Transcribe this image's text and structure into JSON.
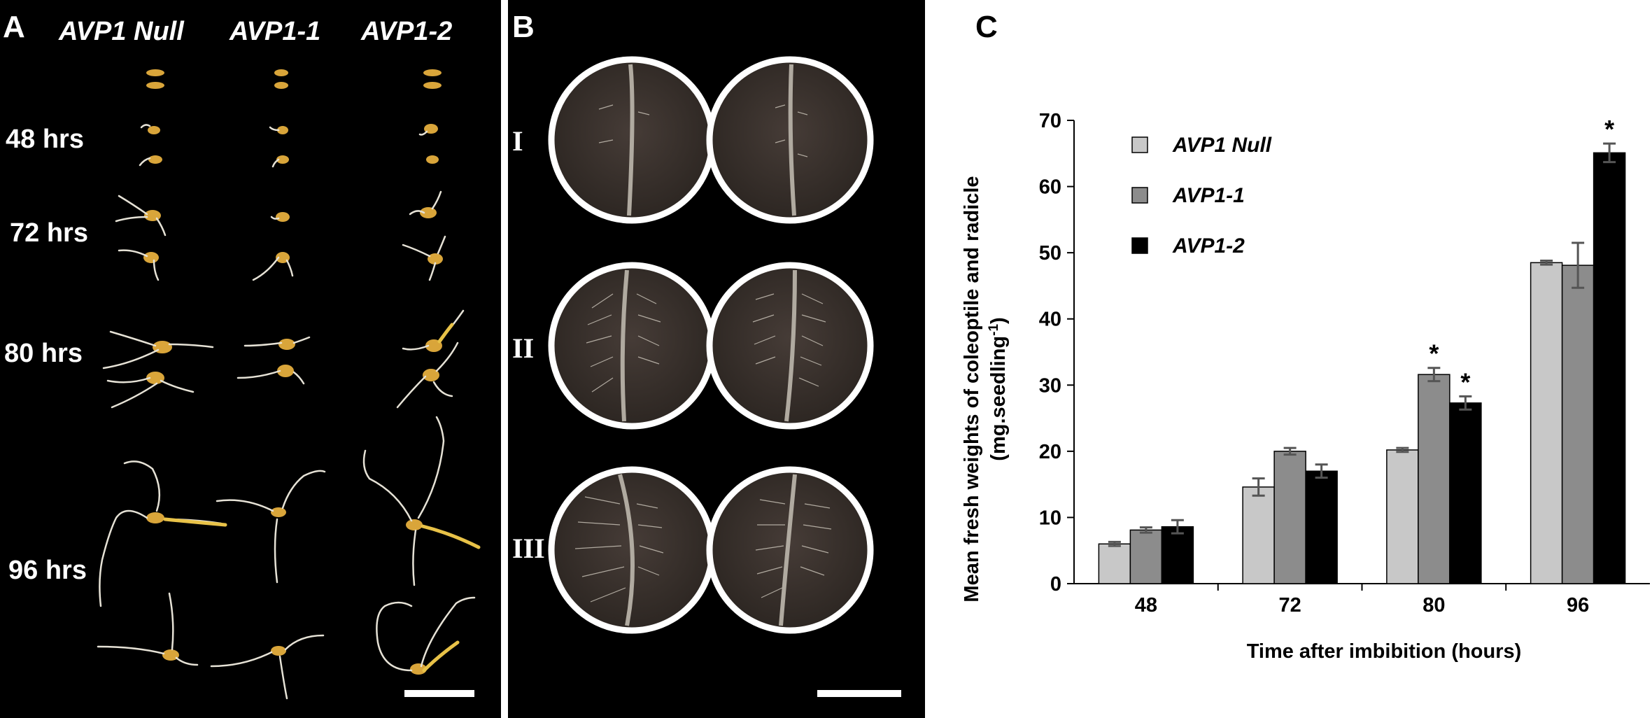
{
  "panel_a": {
    "letter": "A",
    "columns": [
      "AVP1 Null",
      "AVP1-1",
      "AVP1-2"
    ],
    "rows": [
      "48 hrs",
      "72 hrs",
      "80 hrs",
      "96 hrs"
    ]
  },
  "panel_b": {
    "letter": "B",
    "rows": [
      "I",
      "II",
      "III"
    ]
  },
  "panel_c": {
    "letter": "C"
  },
  "chart_data": {
    "type": "bar",
    "categories": [
      "48",
      "72",
      "80",
      "96"
    ],
    "series": [
      {
        "name": "AVP1 Null",
        "color": "#c8c8c8",
        "values": [
          6.0,
          14.6,
          20.2,
          48.5
        ],
        "errors": [
          0.3,
          1.3,
          0.3,
          0.3
        ],
        "significant": [
          false,
          false,
          false,
          false
        ]
      },
      {
        "name": "AVP1-1",
        "color": "#8c8c8c",
        "values": [
          8.1,
          20.0,
          31.6,
          48.1
        ],
        "errors": [
          0.4,
          0.5,
          1.0,
          3.4
        ],
        "significant": [
          false,
          false,
          true,
          false
        ]
      },
      {
        "name": "AVP1-2",
        "color": "#000000",
        "values": [
          8.6,
          17.0,
          27.3,
          65.1
        ],
        "errors": [
          1.0,
          1.0,
          1.0,
          1.4
        ],
        "significant": [
          false,
          false,
          true,
          true
        ]
      }
    ],
    "significance_marker": "*",
    "xlabel": "Time after imbibition (hours)",
    "ylabel_line1": "Mean fresh weights of coleoptile and radicle",
    "ylabel_line2_prefix": "(mg.seedling",
    "ylabel_line2_sup": "-1",
    "ylabel_line2_suffix": ")",
    "ylim": [
      0,
      70
    ],
    "yticks": [
      0,
      10,
      20,
      30,
      40,
      50,
      60,
      70
    ],
    "grid": false,
    "legend_position": "top-left"
  }
}
